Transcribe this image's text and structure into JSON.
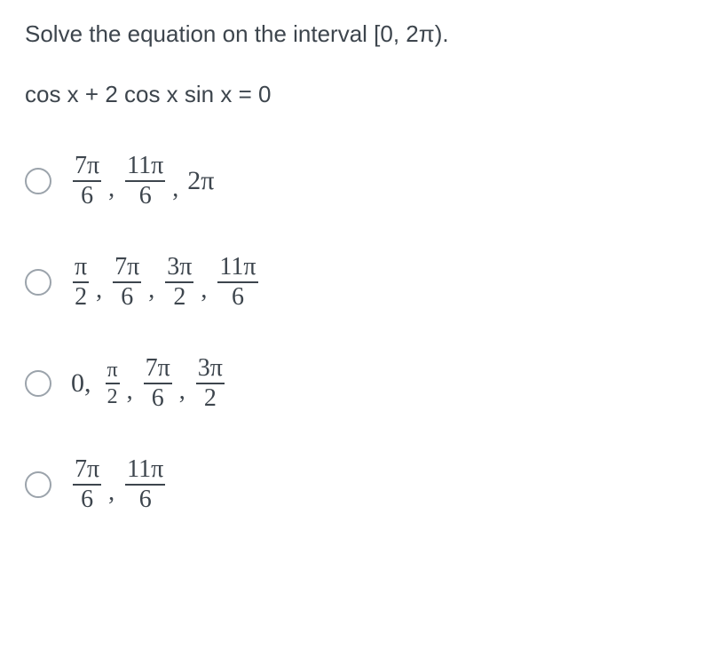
{
  "question": {
    "prompt": "Solve the equation on the interval [0, 2π).",
    "equation": "cos x + 2 cos x sin x = 0"
  },
  "options": [
    {
      "parts": [
        {
          "type": "frac",
          "num": "7π",
          "den": "6"
        },
        {
          "type": "sep",
          "text": ","
        },
        {
          "type": "frac",
          "num": "11π",
          "den": "6"
        },
        {
          "type": "sep",
          "text": ","
        },
        {
          "type": "whole",
          "text": "2π"
        }
      ]
    },
    {
      "parts": [
        {
          "type": "frac",
          "num": "π",
          "den": "2"
        },
        {
          "type": "sep",
          "text": ","
        },
        {
          "type": "frac",
          "num": "7π",
          "den": "6"
        },
        {
          "type": "sep",
          "text": ","
        },
        {
          "type": "frac",
          "num": "3π",
          "den": "2"
        },
        {
          "type": "sep",
          "text": ","
        },
        {
          "type": "frac",
          "num": "11π",
          "den": "6"
        }
      ]
    },
    {
      "parts": [
        {
          "type": "whole",
          "text": "0,"
        },
        {
          "type": "frac-sm",
          "num": "π",
          "den": "2"
        },
        {
          "type": "sep",
          "text": ","
        },
        {
          "type": "frac",
          "num": "7π",
          "den": "6"
        },
        {
          "type": "sep",
          "text": ","
        },
        {
          "type": "frac",
          "num": "3π",
          "den": "2"
        }
      ]
    },
    {
      "parts": [
        {
          "type": "frac",
          "num": "7π",
          "den": "6"
        },
        {
          "type": "sep",
          "text": ","
        },
        {
          "type": "frac",
          "num": "11π",
          "den": "6"
        }
      ]
    }
  ],
  "colors": {
    "text": "#3d454d",
    "radio_border": "#9ba3ab",
    "background": "#ffffff",
    "frac_bar": "#3d454d"
  },
  "typography": {
    "question_fontsize": 26,
    "answer_fontsize": 30,
    "font_family_question": "sans-serif",
    "font_family_answer": "serif"
  }
}
